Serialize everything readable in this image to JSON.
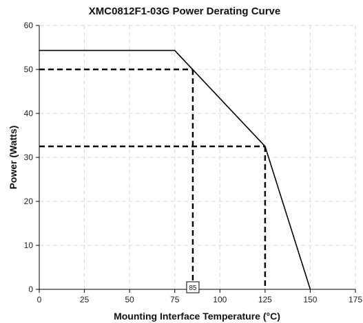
{
  "chart_data": {
    "type": "line",
    "title": "XMC0812F1-03G Power Derating Curve",
    "xlabel": "Mounting Interface Temperature (°C)",
    "ylabel": "Power (Watts)",
    "xlim": [
      0,
      175
    ],
    "ylim": [
      0,
      60
    ],
    "xticks": [
      0,
      25,
      50,
      75,
      100,
      125,
      150,
      175
    ],
    "yticks": [
      0,
      10,
      20,
      30,
      40,
      50,
      60
    ],
    "grid": true,
    "series": [
      {
        "x": [
          0,
          75,
          125,
          150
        ],
        "y": [
          54.3,
          54.3,
          32.5,
          0
        ]
      }
    ],
    "reference_lines": [
      {
        "x": 85,
        "y": 50
      },
      {
        "x": 125,
        "y": 32.5
      }
    ],
    "annotations": [
      {
        "text": "85",
        "x": 85,
        "y": 0
      }
    ],
    "colors": {
      "line": "#000000",
      "grid": "#d9d9d9",
      "reference": "#000000"
    }
  }
}
